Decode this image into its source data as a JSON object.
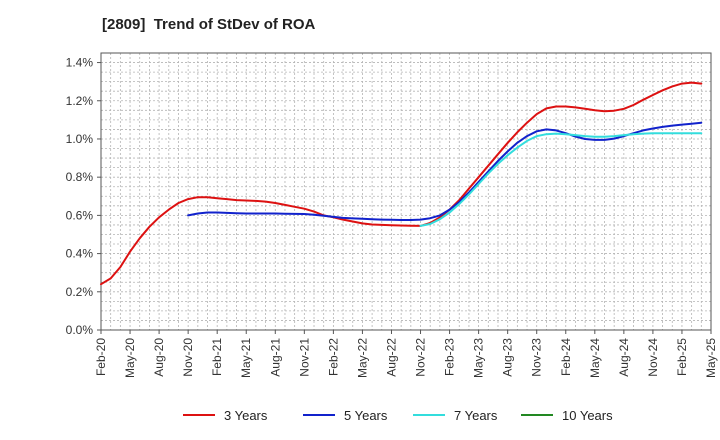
{
  "chart_data": {
    "type": "line",
    "title": "[2809]  Trend of StDev of ROA",
    "xlabel": "",
    "ylabel": "",
    "x_ticks": [
      "Feb-20",
      "May-20",
      "Aug-20",
      "Nov-20",
      "Feb-21",
      "May-21",
      "Aug-21",
      "Nov-21",
      "Feb-22",
      "May-22",
      "Aug-22",
      "Nov-22",
      "Feb-23",
      "May-23",
      "Aug-23",
      "Nov-23",
      "Feb-24",
      "May-24",
      "Aug-24",
      "Nov-24",
      "Feb-25",
      "May-25"
    ],
    "y_ticks": [
      "0.0%",
      "0.2%",
      "0.4%",
      "0.6%",
      "0.8%",
      "1.0%",
      "1.2%",
      "1.4%"
    ],
    "ylim": [
      0,
      1.45
    ],
    "y_unit": "%",
    "grid": true,
    "grid_style": "dashed",
    "legend_position": "bottom",
    "series": [
      {
        "name": "3 Years",
        "color": "#dd1111",
        "points": [
          [
            "Feb-20",
            0.24
          ],
          [
            "Mar-20",
            0.27
          ],
          [
            "Apr-20",
            0.33
          ],
          [
            "May-20",
            0.41
          ],
          [
            "Jun-20",
            0.48
          ],
          [
            "Jul-20",
            0.54
          ],
          [
            "Aug-20",
            0.59
          ],
          [
            "Sep-20",
            0.63
          ],
          [
            "Oct-20",
            0.665
          ],
          [
            "Nov-20",
            0.685
          ],
          [
            "Dec-20",
            0.695
          ],
          [
            "Jan-21",
            0.695
          ],
          [
            "Feb-21",
            0.69
          ],
          [
            "Mar-21",
            0.685
          ],
          [
            "Apr-21",
            0.68
          ],
          [
            "May-21",
            0.678
          ],
          [
            "Jun-21",
            0.676
          ],
          [
            "Jul-21",
            0.672
          ],
          [
            "Aug-21",
            0.665
          ],
          [
            "Sep-21",
            0.655
          ],
          [
            "Oct-21",
            0.645
          ],
          [
            "Nov-21",
            0.635
          ],
          [
            "Dec-21",
            0.62
          ],
          [
            "Jan-22",
            0.6
          ],
          [
            "Feb-22",
            0.59
          ],
          [
            "Mar-22",
            0.578
          ],
          [
            "Apr-22",
            0.568
          ],
          [
            "May-22",
            0.558
          ],
          [
            "Jun-22",
            0.552
          ],
          [
            "Jul-22",
            0.55
          ],
          [
            "Aug-22",
            0.548
          ],
          [
            "Sep-22",
            0.547
          ],
          [
            "Oct-22",
            0.546
          ],
          [
            "Nov-22",
            0.545
          ],
          [
            "Dec-22",
            0.56
          ],
          [
            "Jan-23",
            0.59
          ],
          [
            "Feb-23",
            0.63
          ],
          [
            "Mar-23",
            0.68
          ],
          [
            "Apr-23",
            0.74
          ],
          [
            "May-23",
            0.8
          ],
          [
            "Jun-23",
            0.86
          ],
          [
            "Jul-23",
            0.92
          ],
          [
            "Aug-23",
            0.98
          ],
          [
            "Sep-23",
            1.035
          ],
          [
            "Oct-23",
            1.085
          ],
          [
            "Nov-23",
            1.13
          ],
          [
            "Dec-23",
            1.16
          ],
          [
            "Jan-24",
            1.17
          ],
          [
            "Feb-24",
            1.17
          ],
          [
            "Mar-24",
            1.165
          ],
          [
            "Apr-24",
            1.158
          ],
          [
            "May-24",
            1.15
          ],
          [
            "Jun-24",
            1.145
          ],
          [
            "Jul-24",
            1.148
          ],
          [
            "Aug-24",
            1.158
          ],
          [
            "Sep-24",
            1.178
          ],
          [
            "Oct-24",
            1.205
          ],
          [
            "Nov-24",
            1.23
          ],
          [
            "Dec-24",
            1.255
          ],
          [
            "Jan-25",
            1.275
          ],
          [
            "Feb-25",
            1.29
          ],
          [
            "Mar-25",
            1.295
          ],
          [
            "Apr-25",
            1.29
          ]
        ]
      },
      {
        "name": "5 Years",
        "color": "#1122cc",
        "points": [
          [
            "Nov-20",
            0.6
          ],
          [
            "Dec-20",
            0.61
          ],
          [
            "Jan-21",
            0.615
          ],
          [
            "Feb-21",
            0.615
          ],
          [
            "Mar-21",
            0.613
          ],
          [
            "Apr-21",
            0.611
          ],
          [
            "May-21",
            0.61
          ],
          [
            "Jun-21",
            0.61
          ],
          [
            "Jul-21",
            0.61
          ],
          [
            "Aug-21",
            0.61
          ],
          [
            "Sep-21",
            0.609
          ],
          [
            "Oct-21",
            0.608
          ],
          [
            "Nov-21",
            0.607
          ],
          [
            "Dec-21",
            0.603
          ],
          [
            "Jan-22",
            0.598
          ],
          [
            "Feb-22",
            0.592
          ],
          [
            "Mar-22",
            0.587
          ],
          [
            "Apr-22",
            0.584
          ],
          [
            "May-22",
            0.582
          ],
          [
            "Jun-22",
            0.58
          ],
          [
            "Jul-22",
            0.578
          ],
          [
            "Aug-22",
            0.577
          ],
          [
            "Sep-22",
            0.576
          ],
          [
            "Oct-22",
            0.576
          ],
          [
            "Nov-22",
            0.578
          ],
          [
            "Dec-22",
            0.585
          ],
          [
            "Jan-23",
            0.6
          ],
          [
            "Feb-23",
            0.63
          ],
          [
            "Mar-23",
            0.67
          ],
          [
            "Apr-23",
            0.72
          ],
          [
            "May-23",
            0.775
          ],
          [
            "Jun-23",
            0.83
          ],
          [
            "Jul-23",
            0.885
          ],
          [
            "Aug-23",
            0.935
          ],
          [
            "Sep-23",
            0.98
          ],
          [
            "Oct-23",
            1.015
          ],
          [
            "Nov-23",
            1.04
          ],
          [
            "Dec-23",
            1.05
          ],
          [
            "Jan-24",
            1.045
          ],
          [
            "Feb-24",
            1.03
          ],
          [
            "Mar-24",
            1.013
          ],
          [
            "Apr-24",
            1.0
          ],
          [
            "May-24",
            0.995
          ],
          [
            "Jun-24",
            0.995
          ],
          [
            "Jul-24",
            1.002
          ],
          [
            "Aug-24",
            1.015
          ],
          [
            "Sep-24",
            1.03
          ],
          [
            "Oct-24",
            1.045
          ],
          [
            "Nov-24",
            1.055
          ],
          [
            "Dec-24",
            1.063
          ],
          [
            "Jan-25",
            1.07
          ],
          [
            "Feb-25",
            1.075
          ],
          [
            "Mar-25",
            1.08
          ],
          [
            "Apr-25",
            1.085
          ]
        ]
      },
      {
        "name": "7 Years",
        "color": "#33dddd",
        "points": [
          [
            "Nov-22",
            0.545
          ],
          [
            "Dec-22",
            0.555
          ],
          [
            "Jan-23",
            0.58
          ],
          [
            "Feb-23",
            0.615
          ],
          [
            "Mar-23",
            0.66
          ],
          [
            "Apr-23",
            0.71
          ],
          [
            "May-23",
            0.765
          ],
          [
            "Jun-23",
            0.82
          ],
          [
            "Jul-23",
            0.87
          ],
          [
            "Aug-23",
            0.915
          ],
          [
            "Sep-23",
            0.955
          ],
          [
            "Oct-23",
            0.99
          ],
          [
            "Nov-23",
            1.015
          ],
          [
            "Dec-23",
            1.025
          ],
          [
            "Jan-24",
            1.028
          ],
          [
            "Feb-24",
            1.025
          ],
          [
            "Mar-24",
            1.02
          ],
          [
            "Apr-24",
            1.015
          ],
          [
            "May-24",
            1.012
          ],
          [
            "Jun-24",
            1.012
          ],
          [
            "Jul-24",
            1.015
          ],
          [
            "Aug-24",
            1.02
          ],
          [
            "Sep-24",
            1.025
          ],
          [
            "Oct-24",
            1.028
          ],
          [
            "Nov-24",
            1.03
          ],
          [
            "Dec-24",
            1.03
          ],
          [
            "Jan-25",
            1.03
          ],
          [
            "Feb-25",
            1.03
          ],
          [
            "Mar-25",
            1.03
          ],
          [
            "Apr-25",
            1.03
          ]
        ]
      },
      {
        "name": "10 Years",
        "color": "#228822",
        "points": []
      }
    ]
  }
}
